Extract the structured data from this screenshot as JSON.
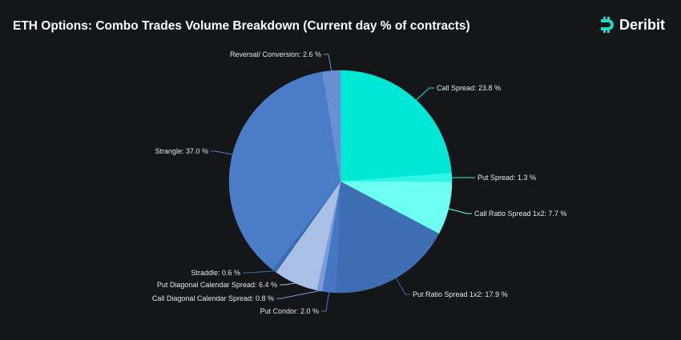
{
  "header": {
    "title": "ETH Options: Combo Trades Volume Breakdown (Current day % of contracts)",
    "brand": "Deribit"
  },
  "chart_data": {
    "type": "pie",
    "title": "ETH Options: Combo Trades Volume Breakdown (Current day % of contracts)",
    "slices": [
      {
        "label": "Call Spread",
        "value": 23.8,
        "color": "#00e8d5"
      },
      {
        "label": "Put Spread",
        "value": 1.3,
        "color": "#30f5e5"
      },
      {
        "label": "Call Ratio Spread 1x2",
        "value": 7.7,
        "color": "#6cfff2"
      },
      {
        "label": "Put Ratio Spread 1x2",
        "value": 17.9,
        "color": "#3d6db3"
      },
      {
        "label": "Put Condor",
        "value": 2.0,
        "color": "#4677c5"
      },
      {
        "label": "Call Diagonal Calendar Spread",
        "value": 0.8,
        "color": "#7b9cd8"
      },
      {
        "label": "Put Diagonal Calendar Spread",
        "value": 6.4,
        "color": "#a9bfe6"
      },
      {
        "label": "Straddle",
        "value": 0.6,
        "color": "#3a6ab0"
      },
      {
        "label": "Strangle",
        "value": 37.0,
        "color": "#4a7cc7"
      },
      {
        "label": "Reversal/ Conversion",
        "value": 2.6,
        "color": "#6a8fd2"
      }
    ],
    "label_format": "{label}: {value} %"
  }
}
